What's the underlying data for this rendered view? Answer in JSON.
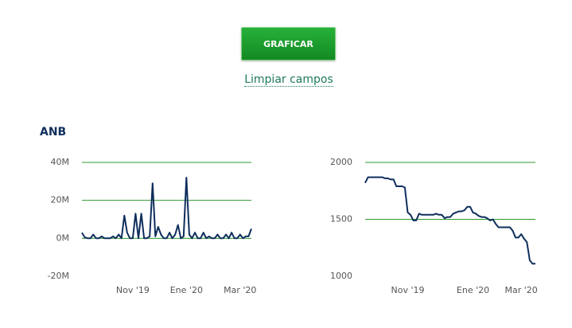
{
  "controls": {
    "button": "GRAFICAR",
    "link": "Limpiar campos"
  },
  "chart_data": [
    {
      "type": "line",
      "title": "ANB",
      "categories": [
        null,
        null,
        null,
        null,
        null,
        null,
        null,
        null,
        null,
        null,
        null,
        null,
        null,
        null,
        null,
        null,
        null,
        null,
        "Nov '19",
        null,
        null,
        null,
        null,
        null,
        null,
        null,
        null,
        null,
        null,
        null,
        null,
        null,
        null,
        null,
        null,
        null,
        null,
        "Ene '20",
        null,
        null,
        null,
        null,
        null,
        null,
        null,
        null,
        null,
        null,
        null,
        null,
        null,
        null,
        null,
        null,
        null,
        null,
        "Mar '20",
        null,
        null,
        null,
        null
      ],
      "series": [
        {
          "color": "#0e2e5c",
          "values": [
            3000000,
            500000,
            0,
            0,
            2000000,
            0,
            0,
            1000000,
            0,
            0,
            0,
            1000000,
            0,
            2000000,
            0,
            12000000,
            3000000,
            0,
            0,
            13000000,
            0,
            13000000,
            0,
            0,
            1000000,
            29000000,
            1000000,
            6000000,
            2000000,
            0,
            0,
            3000000,
            0,
            2000000,
            7000000,
            0,
            1000000,
            32000000,
            2000000,
            0,
            3000000,
            0,
            0,
            3000000,
            0,
            1000000,
            0,
            0,
            2000000,
            0,
            0,
            2000000,
            0,
            3000000,
            0,
            0,
            2000000,
            0,
            1000000,
            1000000,
            5000000
          ]
        }
      ],
      "ylim": [
        -20000000,
        40000000
      ],
      "yticks": [
        {
          "value": -20000000,
          "label": "-20M"
        },
        {
          "value": 0,
          "label": "0M"
        },
        {
          "value": 20000000,
          "label": "20M"
        },
        {
          "value": 40000000,
          "label": "40M"
        }
      ],
      "grid": true,
      "grid_color": "#2e9a2e"
    },
    {
      "type": "line",
      "categories": [
        null,
        null,
        null,
        null,
        null,
        null,
        null,
        null,
        null,
        null,
        null,
        null,
        null,
        null,
        null,
        "Nov '19",
        null,
        null,
        null,
        null,
        null,
        null,
        null,
        null,
        null,
        null,
        null,
        null,
        null,
        null,
        null,
        null,
        null,
        null,
        null,
        null,
        null,
        null,
        "Ene '20",
        null,
        null,
        null,
        null,
        null,
        null,
        null,
        null,
        null,
        null,
        null,
        null,
        null,
        null,
        null,
        null,
        "Mar '20",
        null,
        null,
        null,
        null,
        null
      ],
      "series": [
        {
          "color": "#0e2e5c",
          "values": [
            1820,
            1870,
            1870,
            1870,
            1870,
            1870,
            1870,
            1860,
            1860,
            1850,
            1850,
            1790,
            1790,
            1790,
            1780,
            1560,
            1540,
            1490,
            1490,
            1550,
            1540,
            1540,
            1540,
            1540,
            1540,
            1550,
            1540,
            1540,
            1510,
            1520,
            1520,
            1550,
            1560,
            1570,
            1570,
            1580,
            1610,
            1610,
            1560,
            1550,
            1530,
            1520,
            1520,
            1510,
            1490,
            1500,
            1460,
            1430,
            1430,
            1430,
            1430,
            1430,
            1400,
            1340,
            1340,
            1370,
            1330,
            1300,
            1140,
            1110,
            1110
          ]
        }
      ],
      "ylim": [
        1000,
        2000
      ],
      "yticks": [
        1000,
        1500,
        2000
      ],
      "grid": true,
      "grid_color": "#2e9a2e"
    }
  ]
}
